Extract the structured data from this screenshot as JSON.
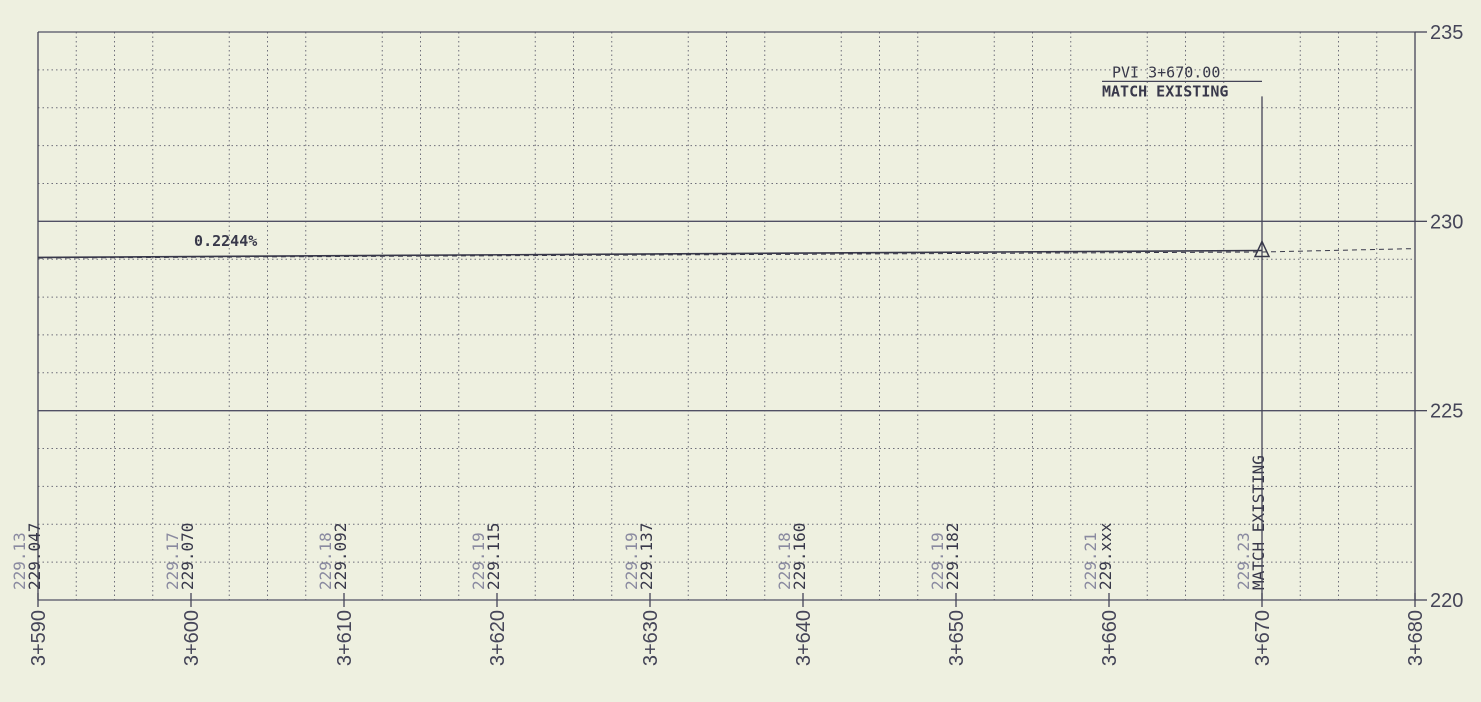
{
  "chart_data": {
    "type": "line",
    "title": "",
    "xlabel": "",
    "ylabel": "",
    "xlim": [
      3590,
      3680
    ],
    "ylim": [
      220,
      235
    ],
    "grid": true,
    "x_tick_labels": [
      "3+590",
      "3+600",
      "3+610",
      "3+620",
      "3+630",
      "3+640",
      "3+650",
      "3+660",
      "3+670",
      "3+680"
    ],
    "y_tick_labels": [
      "220",
      "225",
      "230",
      "235"
    ],
    "series": [
      {
        "style": "solid",
        "x": [
          3590,
          3670
        ],
        "y": [
          229.047,
          229.23
        ]
      },
      {
        "style": "dashed",
        "x": [
          3590,
          3610,
          3630,
          3650,
          3670,
          3680
        ],
        "y": [
          229.03,
          229.07,
          229.11,
          229.15,
          229.19,
          229.28
        ]
      }
    ],
    "stations": [
      {
        "x": 3590,
        "existing": "229.13",
        "proposed": "229.047"
      },
      {
        "x": 3600,
        "existing": "229.17",
        "proposed": "229.070"
      },
      {
        "x": 3610,
        "existing": "229.18",
        "proposed": "229.092"
      },
      {
        "x": 3620,
        "existing": "229.19",
        "proposed": "229.115"
      },
      {
        "x": 3630,
        "existing": "229.19",
        "proposed": "229.137"
      },
      {
        "x": 3640,
        "existing": "229.18",
        "proposed": "229.160"
      },
      {
        "x": 3650,
        "existing": "229.19",
        "proposed": "229.182"
      },
      {
        "x": 3660,
        "existing": "229.21",
        "proposed": "229.xxx"
      },
      {
        "x": 3670,
        "existing": "229.23",
        "proposed": "MATCH EXISTING"
      }
    ],
    "annotations": {
      "grade": {
        "text": "0.2244%",
        "x": 3600.2,
        "y": 229.35
      },
      "pvi": {
        "x": 3670,
        "y": 229.23,
        "line1": "PVI 3+670.00",
        "line2": "MATCH EXISTING",
        "top_y": 233.3
      }
    }
  }
}
